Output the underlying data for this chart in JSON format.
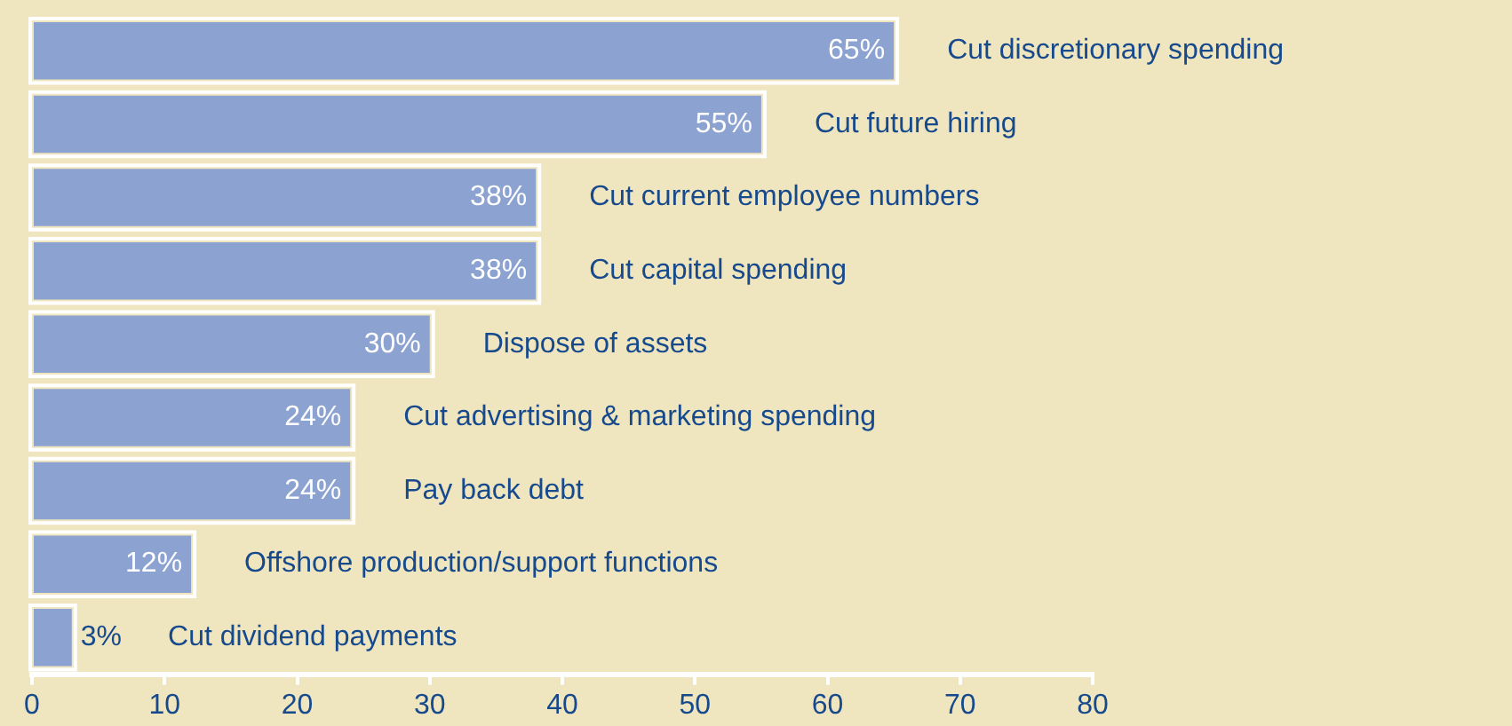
{
  "chart_data": {
    "type": "bar",
    "orientation": "horizontal",
    "categories": [
      "Cut discretionary spending",
      "Cut future hiring",
      "Cut current employee numbers",
      "Cut capital spending",
      "Dispose of assets",
      "Cut advertising & marketing spending",
      "Pay back debt",
      "Offshore production/support functions",
      "Cut dividend payments"
    ],
    "values": [
      65,
      55,
      38,
      38,
      30,
      24,
      24,
      12,
      3
    ],
    "value_labels": [
      "65%",
      "55%",
      "38%",
      "38%",
      "30%",
      "24%",
      "24%",
      "12%",
      "3%"
    ],
    "color": "#8ca3d1",
    "xlim": [
      0,
      80
    ],
    "xticks": [
      0,
      10,
      20,
      30,
      40,
      50,
      60,
      70,
      80
    ],
    "grid": false,
    "legend": false,
    "tick_labels": "x"
  }
}
